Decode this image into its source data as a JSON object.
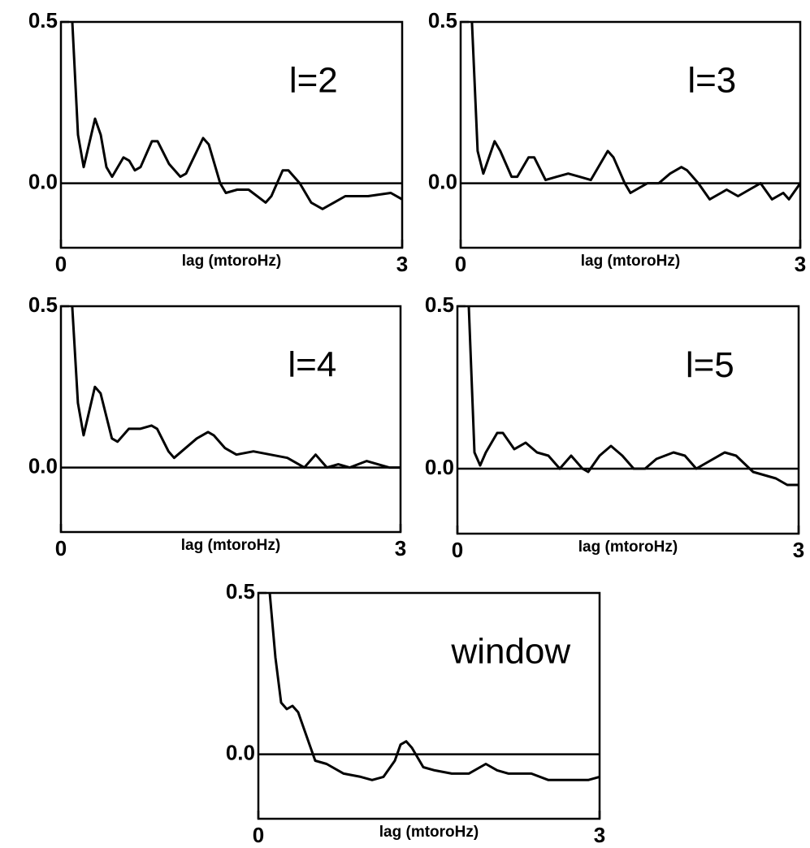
{
  "chart_data": [
    {
      "type": "line",
      "annotation": "l=2",
      "xlabel": "lag (mtoroHz)",
      "xlim": [
        0,
        3
      ],
      "ylim": [
        -0.2,
        0.5
      ],
      "xticks": [
        0,
        3
      ],
      "yticks": [
        {
          "value": 0,
          "label": "0.0"
        },
        0.5
      ],
      "x": [
        0.1,
        0.15,
        0.2,
        0.3,
        0.35,
        0.4,
        0.45,
        0.55,
        0.6,
        0.65,
        0.7,
        0.8,
        0.85,
        0.95,
        1.05,
        1.1,
        1.25,
        1.3,
        1.4,
        1.45,
        1.55,
        1.65,
        1.8,
        1.85,
        1.95,
        2.0,
        2.1,
        2.2,
        2.3,
        2.4,
        2.5,
        2.7,
        2.9,
        3.0
      ],
      "values": [
        0.5,
        0.15,
        0.05,
        0.2,
        0.15,
        0.05,
        0.02,
        0.08,
        0.07,
        0.04,
        0.05,
        0.13,
        0.13,
        0.06,
        0.02,
        0.03,
        0.14,
        0.12,
        0.0,
        -0.03,
        -0.02,
        -0.02,
        -0.06,
        -0.04,
        0.04,
        0.04,
        0.0,
        -0.06,
        -0.08,
        -0.06,
        -0.04,
        -0.04,
        -0.03,
        -0.05
      ]
    },
    {
      "type": "line",
      "annotation": "l=3",
      "xlabel": "lag (mtoroHz)",
      "xlim": [
        0,
        3
      ],
      "ylim": [
        -0.2,
        0.5
      ],
      "xticks": [
        0,
        3
      ],
      "yticks": [
        {
          "value": 0,
          "label": "0.0"
        },
        0.5
      ],
      "x": [
        0.1,
        0.15,
        0.2,
        0.3,
        0.35,
        0.45,
        0.5,
        0.6,
        0.65,
        0.75,
        0.85,
        0.95,
        1.05,
        1.15,
        1.3,
        1.35,
        1.45,
        1.5,
        1.55,
        1.65,
        1.75,
        1.85,
        1.95,
        2.0,
        2.1,
        2.2,
        2.3,
        2.35,
        2.45,
        2.55,
        2.65,
        2.75,
        2.85,
        2.9,
        3.0
      ],
      "values": [
        0.5,
        0.1,
        0.03,
        0.13,
        0.1,
        0.02,
        0.02,
        0.08,
        0.08,
        0.01,
        0.02,
        0.03,
        0.02,
        0.01,
        0.1,
        0.08,
        0.0,
        -0.03,
        -0.02,
        0.0,
        0.0,
        0.03,
        0.05,
        0.04,
        0.0,
        -0.05,
        -0.03,
        -0.02,
        -0.04,
        -0.02,
        0.0,
        -0.05,
        -0.03,
        -0.05,
        0.0
      ]
    },
    {
      "type": "line",
      "annotation": "l=4",
      "xlabel": "lag (mtoroHz)",
      "xlim": [
        0,
        3
      ],
      "ylim": [
        -0.2,
        0.5
      ],
      "xticks": [
        0,
        3
      ],
      "yticks": [
        {
          "value": 0,
          "label": "0.0"
        },
        0.5
      ],
      "x": [
        0.1,
        0.15,
        0.2,
        0.3,
        0.35,
        0.45,
        0.5,
        0.6,
        0.7,
        0.8,
        0.85,
        0.95,
        1.0,
        1.1,
        1.2,
        1.3,
        1.35,
        1.45,
        1.55,
        1.7,
        1.85,
        2.0,
        2.15,
        2.25,
        2.35,
        2.45,
        2.55,
        2.7,
        2.8,
        2.9,
        3.0
      ],
      "values": [
        0.5,
        0.2,
        0.1,
        0.25,
        0.23,
        0.09,
        0.08,
        0.12,
        0.12,
        0.13,
        0.12,
        0.05,
        0.03,
        0.06,
        0.09,
        0.11,
        0.1,
        0.06,
        0.04,
        0.05,
        0.04,
        0.03,
        0.0,
        0.04,
        0.0,
        0.01,
        0.0,
        0.02,
        0.01,
        0.0,
        0.0
      ]
    },
    {
      "type": "line",
      "annotation": "l=5",
      "xlabel": "lag (mtoroHz)",
      "xlim": [
        0,
        3
      ],
      "ylim": [
        -0.2,
        0.5
      ],
      "xticks": [
        0,
        3
      ],
      "yticks": [
        {
          "value": 0,
          "label": "0.0"
        },
        0.5
      ],
      "x": [
        0.1,
        0.15,
        0.2,
        0.25,
        0.35,
        0.4,
        0.5,
        0.6,
        0.7,
        0.8,
        0.9,
        1.0,
        1.1,
        1.15,
        1.25,
        1.35,
        1.45,
        1.55,
        1.65,
        1.75,
        1.9,
        2.0,
        2.1,
        2.2,
        2.35,
        2.45,
        2.6,
        2.7,
        2.8,
        2.9,
        3.0
      ],
      "values": [
        0.5,
        0.05,
        0.01,
        0.05,
        0.11,
        0.11,
        0.06,
        0.08,
        0.05,
        0.04,
        0.0,
        0.04,
        0.0,
        -0.01,
        0.04,
        0.07,
        0.04,
        0.0,
        0.0,
        0.03,
        0.05,
        0.04,
        0.0,
        0.02,
        0.05,
        0.04,
        -0.01,
        -0.02,
        -0.03,
        -0.05,
        -0.05
      ]
    },
    {
      "type": "line",
      "annotation": "window",
      "xlabel": "lag (mtoroHz)",
      "xlim": [
        0,
        3
      ],
      "ylim": [
        -0.2,
        0.5
      ],
      "xticks": [
        0,
        3
      ],
      "yticks": [
        {
          "value": 0,
          "label": "0.0"
        },
        0.5
      ],
      "x": [
        0.1,
        0.15,
        0.2,
        0.25,
        0.3,
        0.35,
        0.45,
        0.5,
        0.6,
        0.75,
        0.9,
        1.0,
        1.1,
        1.2,
        1.25,
        1.3,
        1.35,
        1.45,
        1.55,
        1.7,
        1.85,
        2.0,
        2.1,
        2.2,
        2.3,
        2.4,
        2.55,
        2.75,
        2.9,
        3.0
      ],
      "values": [
        0.5,
        0.3,
        0.16,
        0.14,
        0.15,
        0.13,
        0.03,
        -0.02,
        -0.03,
        -0.06,
        -0.07,
        -0.08,
        -0.07,
        -0.02,
        0.03,
        0.04,
        0.02,
        -0.04,
        -0.05,
        -0.06,
        -0.06,
        -0.03,
        -0.05,
        -0.06,
        -0.06,
        -0.06,
        -0.08,
        -0.08,
        -0.08,
        -0.07
      ]
    }
  ]
}
